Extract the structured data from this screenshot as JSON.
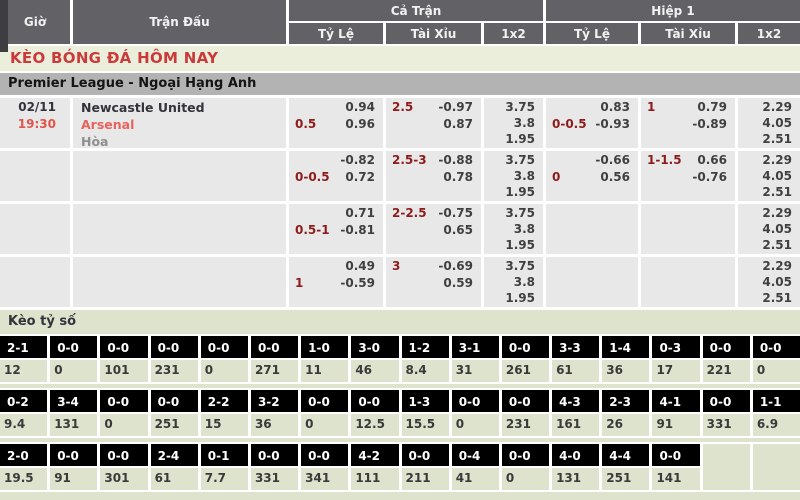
{
  "colors": {
    "header_bg": "#626266",
    "row_bg": "#e8e8e8",
    "section_bg": "#dde3cd",
    "title_red": "#cb3a3a",
    "handicap_maroon": "#8e1b1b",
    "away_red": "#e8635e",
    "league_bg": "#b3b3b3",
    "score_cell_bg": "#000000"
  },
  "header": {
    "gio": "Giờ",
    "tran_dau": "Trận Đấu",
    "ca_tran": "Cả Trận",
    "hiep1": "Hiệp 1",
    "sub": [
      "Tỷ Lệ",
      "Tài Xỉu",
      "1x2"
    ]
  },
  "title": "KÈO BÓNG ĐÁ HÔM NAY",
  "league": "Premier League - Ngoại Hạng Anh",
  "odds": {
    "rows": [
      {
        "date": "02/11",
        "time": "19:30",
        "home": "Newcastle United",
        "away": "Arsenal",
        "draw": "Hòa",
        "ft_hdp": [
          [
            "",
            "0.94"
          ],
          [
            "0.5",
            "0.96"
          ]
        ],
        "ft_ou": [
          [
            "2.5",
            "-0.97"
          ],
          [
            "",
            "0.87"
          ]
        ],
        "ft_1x2": [
          "3.75",
          "3.8",
          "1.95"
        ],
        "h1_hdp": [
          [
            "",
            "0.83"
          ],
          [
            "0-0.5",
            "-0.93"
          ]
        ],
        "h1_ou": [
          [
            "1",
            "0.79"
          ],
          [
            "",
            "-0.89"
          ]
        ],
        "h1_1x2": [
          "2.29",
          "4.05",
          "2.51"
        ]
      },
      {
        "date": "",
        "time": "",
        "home": "",
        "away": "",
        "draw": "",
        "ft_hdp": [
          [
            "",
            "-0.82"
          ],
          [
            "0-0.5",
            "0.72"
          ]
        ],
        "ft_ou": [
          [
            "2.5-3",
            "-0.88"
          ],
          [
            "",
            "0.78"
          ]
        ],
        "ft_1x2": [
          "3.75",
          "3.8",
          "1.95"
        ],
        "h1_hdp": [
          [
            "",
            "-0.66"
          ],
          [
            "0",
            "0.56"
          ]
        ],
        "h1_ou": [
          [
            "1-1.5",
            "0.66"
          ],
          [
            "",
            "-0.76"
          ]
        ],
        "h1_1x2": [
          "2.29",
          "4.05",
          "2.51"
        ]
      },
      {
        "date": "",
        "time": "",
        "home": "",
        "away": "",
        "draw": "",
        "ft_hdp": [
          [
            "",
            "0.71"
          ],
          [
            "0.5-1",
            "-0.81"
          ]
        ],
        "ft_ou": [
          [
            "2-2.5",
            "-0.75"
          ],
          [
            "",
            "0.65"
          ]
        ],
        "ft_1x2": [
          "3.75",
          "3.8",
          "1.95"
        ],
        "h1_hdp": null,
        "h1_ou": null,
        "h1_1x2": [
          "2.29",
          "4.05",
          "2.51"
        ]
      },
      {
        "date": "",
        "time": "",
        "home": "",
        "away": "",
        "draw": "",
        "ft_hdp": [
          [
            "",
            "0.49"
          ],
          [
            "1",
            "-0.59"
          ]
        ],
        "ft_ou": [
          [
            "3",
            "-0.69"
          ],
          [
            "",
            "0.59"
          ]
        ],
        "ft_1x2": [
          "3.75",
          "3.8",
          "1.95"
        ],
        "h1_hdp": null,
        "h1_ou": null,
        "h1_1x2": [
          "2.29",
          "4.05",
          "2.51"
        ]
      }
    ]
  },
  "score_section": {
    "title": "Kèo tỷ số",
    "bands": [
      [
        [
          "2-1",
          "12"
        ],
        [
          "0-0",
          "0"
        ],
        [
          "0-0",
          "101"
        ],
        [
          "0-0",
          "231"
        ],
        [
          "0-0",
          "0"
        ],
        [
          "0-0",
          "271"
        ],
        [
          "1-0",
          "11"
        ],
        [
          "3-0",
          "46"
        ],
        [
          "1-2",
          "8.4"
        ],
        [
          "3-1",
          "31"
        ],
        [
          "0-0",
          "261"
        ],
        [
          "3-3",
          "61"
        ],
        [
          "1-4",
          "36"
        ],
        [
          "0-3",
          "17"
        ],
        [
          "0-0",
          "221"
        ],
        [
          "0-0",
          "0"
        ]
      ],
      [
        [
          "0-2",
          "9.4"
        ],
        [
          "3-4",
          "131"
        ],
        [
          "0-0",
          "0"
        ],
        [
          "0-0",
          "251"
        ],
        [
          "2-2",
          "15"
        ],
        [
          "3-2",
          "36"
        ],
        [
          "0-0",
          "0"
        ],
        [
          "0-0",
          "12.5"
        ],
        [
          "1-3",
          "15.5"
        ],
        [
          "0-0",
          "0"
        ],
        [
          "0-0",
          "231"
        ],
        [
          "4-3",
          "161"
        ],
        [
          "2-3",
          "26"
        ],
        [
          "4-1",
          "91"
        ],
        [
          "0-0",
          "331"
        ],
        [
          "1-1",
          "6.9"
        ]
      ],
      [
        [
          "2-0",
          "19.5"
        ],
        [
          "0-0",
          "91"
        ],
        [
          "0-0",
          "301"
        ],
        [
          "2-4",
          "61"
        ],
        [
          "0-1",
          "7.7"
        ],
        [
          "0-0",
          "331"
        ],
        [
          "0-0",
          "341"
        ],
        [
          "4-2",
          "111"
        ],
        [
          "0-0",
          "211"
        ],
        [
          "0-4",
          "41"
        ],
        [
          "0-0",
          "0"
        ],
        [
          "4-0",
          "131"
        ],
        [
          "4-4",
          "251"
        ],
        [
          "0-0",
          "141"
        ],
        null,
        null
      ]
    ]
  }
}
